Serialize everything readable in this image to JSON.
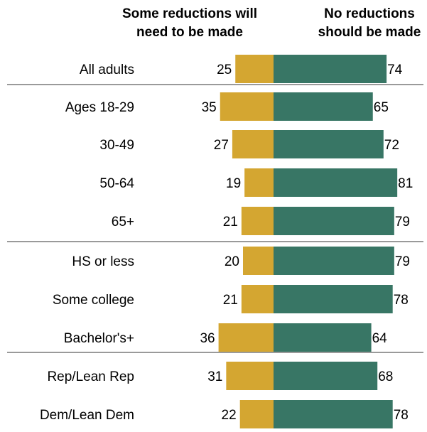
{
  "chart_data": {
    "type": "bar",
    "orientation": "horizontal-diverging",
    "legend": {
      "left_label_lines": [
        "Some reductions will",
        "need to be made"
      ],
      "right_label_lines": [
        "No reductions",
        "should be made"
      ]
    },
    "categories": [
      "All adults",
      "Ages 18-29",
      "30-49",
      "50-64",
      "65+",
      "HS or less",
      "Some college",
      "Bachelor's+",
      "Rep/Lean Rep",
      "Dem/Lean Dem"
    ],
    "groups": [
      [
        "All adults"
      ],
      [
        "Ages 18-29",
        "30-49",
        "50-64",
        "65+"
      ],
      [
        "HS or less",
        "Some college",
        "Bachelor's+"
      ],
      [
        "Rep/Lean Rep",
        "Dem/Lean Dem"
      ]
    ],
    "series": [
      {
        "name": "Some reductions will need to be made",
        "color": "#D4A631",
        "values": [
          25,
          35,
          27,
          19,
          21,
          20,
          21,
          36,
          31,
          22
        ]
      },
      {
        "name": "No reductions should be made",
        "color": "#387665",
        "values": [
          74,
          65,
          72,
          81,
          79,
          79,
          78,
          64,
          68,
          78
        ]
      }
    ]
  }
}
